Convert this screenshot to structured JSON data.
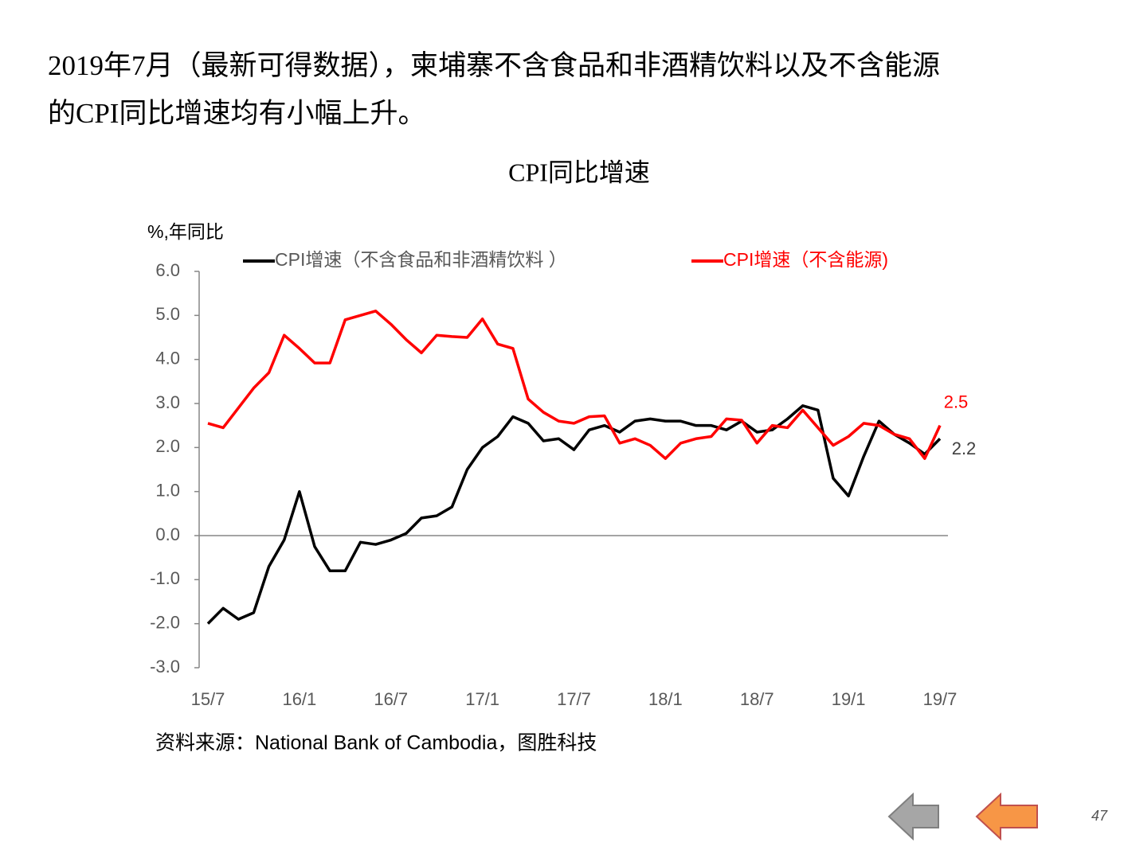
{
  "header": {
    "lines": [
      "2019年7月（最新可得数据），柬埔寨不含食品和非酒精饮料以及不含能源",
      "的CPI同比增速均有小幅上升。"
    ]
  },
  "chart_data": {
    "type": "line",
    "title": "CPI同比增速",
    "y_label": "%,年同比",
    "categories": [
      "15/7",
      null,
      null,
      null,
      null,
      null,
      "16/1",
      null,
      null,
      null,
      null,
      null,
      "16/7",
      null,
      null,
      null,
      null,
      null,
      "17/1",
      null,
      null,
      null,
      null,
      null,
      "17/7",
      null,
      null,
      null,
      null,
      null,
      "18/1",
      null,
      null,
      null,
      null,
      null,
      "18/7",
      null,
      null,
      null,
      null,
      null,
      "19/1",
      null,
      null,
      null,
      null,
      null,
      "19/7"
    ],
    "series": [
      {
        "name": "CPI增速（不含食品和非酒精饮料 ）",
        "color": "#000000",
        "label_color": "#404040",
        "values": [
          -2.0,
          -1.65,
          -1.9,
          -1.75,
          -0.7,
          -0.1,
          1.0,
          -0.25,
          -0.8,
          -0.8,
          -0.15,
          -0.2,
          -0.1,
          0.05,
          0.4,
          0.45,
          0.65,
          1.5,
          2.0,
          2.25,
          2.7,
          2.55,
          2.15,
          2.2,
          1.95,
          2.4,
          2.5,
          2.35,
          2.6,
          2.65,
          2.6,
          2.6,
          2.5,
          2.5,
          2.4,
          2.6,
          2.35,
          2.4,
          2.65,
          2.95,
          2.85,
          1.3,
          0.9,
          1.8,
          2.6,
          2.3,
          2.1,
          1.85,
          2.2
        ]
      },
      {
        "name": "CPI增速（不含能源)",
        "color": "#ff0000",
        "label_color": "#ff0000",
        "values": [
          2.55,
          2.45,
          2.9,
          3.35,
          3.7,
          4.55,
          4.25,
          3.92,
          3.92,
          4.9,
          5.0,
          5.1,
          4.8,
          4.45,
          4.15,
          4.55,
          4.52,
          4.5,
          4.92,
          4.35,
          4.25,
          3.1,
          2.8,
          2.6,
          2.55,
          2.7,
          2.72,
          2.1,
          2.2,
          2.05,
          1.75,
          2.1,
          2.2,
          2.25,
          2.65,
          2.62,
          2.1,
          2.5,
          2.45,
          2.85,
          2.45,
          2.05,
          2.25,
          2.55,
          2.5,
          2.3,
          2.2,
          1.75,
          2.5
        ]
      }
    ],
    "ylim": [
      -3,
      6
    ],
    "yticks": [
      {
        "value": -3,
        "label": "-3.0"
      },
      {
        "value": -2,
        "label": "-2.0"
      },
      {
        "value": -1,
        "label": "-1.0"
      },
      {
        "value": 0,
        "label": "0.0"
      },
      {
        "value": 1,
        "label": "1.0"
      },
      {
        "value": 2,
        "label": "2.0"
      },
      {
        "value": 3,
        "label": "3.0"
      },
      {
        "value": 4,
        "label": "4.0"
      },
      {
        "value": 5,
        "label": "5.0"
      },
      {
        "value": 6,
        "label": "6.0"
      }
    ],
    "grid": false,
    "label_last": true,
    "legend": "top"
  },
  "source": "资料来源：National Bank of Cambodia，图胜科技",
  "page_number": "47"
}
